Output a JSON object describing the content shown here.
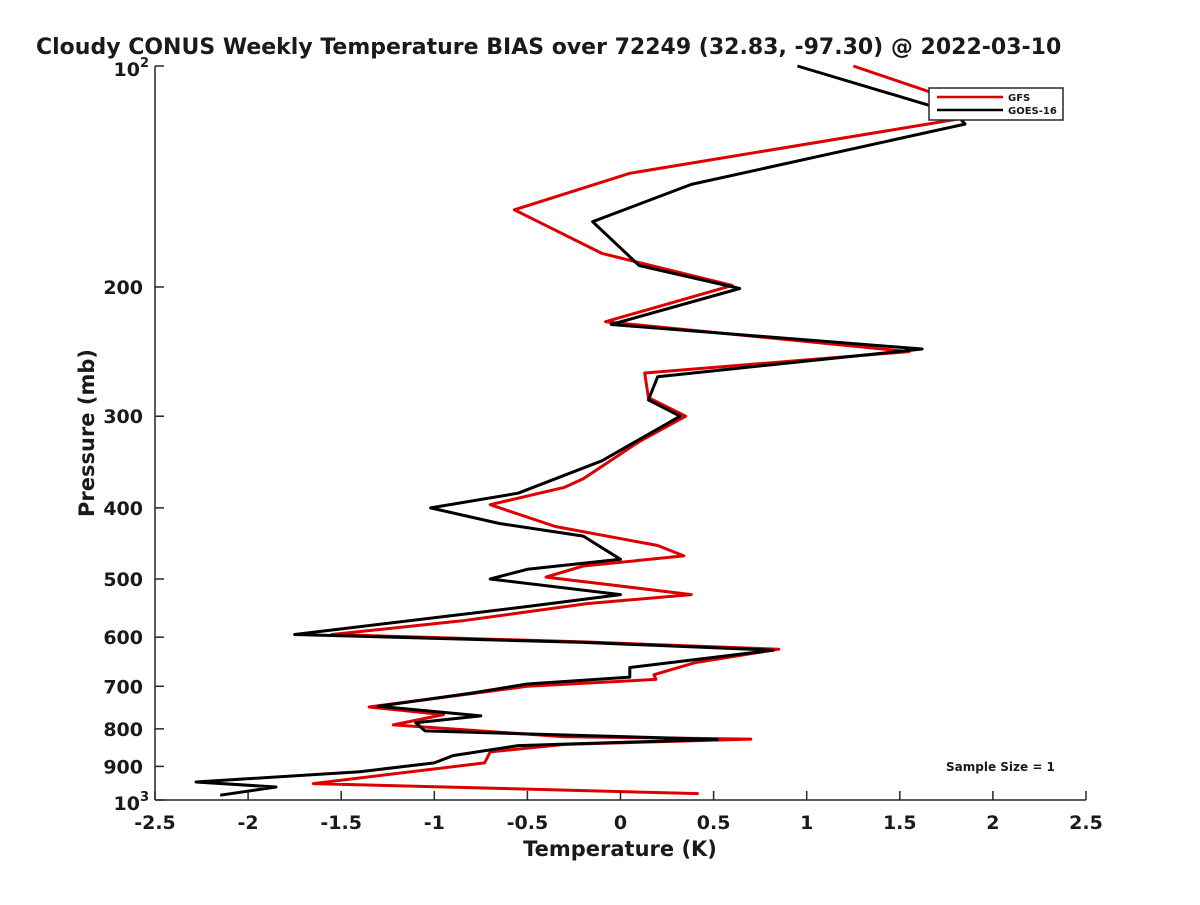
{
  "chart_data": {
    "type": "line",
    "title": "Cloudy CONUS Weekly Temperature BIAS over 72249 (32.83, -97.30) @ 2022-03-10",
    "xlabel": "Temperature (K)",
    "ylabel": "Pressure (mb)",
    "xlim": [
      -2.5,
      2.5
    ],
    "ylim": [
      100,
      1000
    ],
    "y_scale": "log",
    "y_reversed": true,
    "x_tick_labels": [
      "-2.5",
      "-2",
      "-1.5",
      "-1",
      "-0.5",
      "0",
      "0.5",
      "1",
      "1.5",
      "2",
      "2.5"
    ],
    "x_ticks": [
      -2.5,
      -2,
      -1.5,
      -1,
      -0.5,
      0,
      0.5,
      1,
      1.5,
      2,
      2.5
    ],
    "y_ticks": [
      {
        "value": 100,
        "label": "10",
        "sup": "2"
      },
      {
        "value": 200,
        "label": "200"
      },
      {
        "value": 300,
        "label": "300"
      },
      {
        "value": 400,
        "label": "400"
      },
      {
        "value": 500,
        "label": "500"
      },
      {
        "value": 600,
        "label": "600"
      },
      {
        "value": 700,
        "label": "700"
      },
      {
        "value": 800,
        "label": "800"
      },
      {
        "value": 900,
        "label": "900"
      },
      {
        "value": 1000,
        "label": "10",
        "sup": "3"
      }
    ],
    "grid": false,
    "legend_position": "top-right",
    "annotation": "Sample Size = 1",
    "series": [
      {
        "name": "GFS",
        "color": "#dd0000",
        "points": [
          [
            1.25,
            100
          ],
          [
            2.0,
            116
          ],
          [
            0.05,
            140
          ],
          [
            -0.57,
            157
          ],
          [
            -0.1,
            180
          ],
          [
            0.6,
            199
          ],
          [
            -0.08,
            223
          ],
          [
            1.55,
            245
          ],
          [
            0.13,
            262
          ],
          [
            0.15,
            283
          ],
          [
            0.35,
            300
          ],
          [
            0.1,
            325
          ],
          [
            -0.2,
            365
          ],
          [
            -0.3,
            375
          ],
          [
            -0.7,
            396
          ],
          [
            -0.35,
            424
          ],
          [
            0.2,
            450
          ],
          [
            0.34,
            465
          ],
          [
            -0.2,
            480
          ],
          [
            -0.4,
            497
          ],
          [
            0.38,
            525
          ],
          [
            -0.18,
            540
          ],
          [
            -0.85,
            570
          ],
          [
            -1.55,
            595
          ],
          [
            -0.2,
            609
          ],
          [
            0.85,
            623
          ],
          [
            0.4,
            650
          ],
          [
            0.18,
            675
          ],
          [
            0.19,
            685
          ],
          [
            -0.5,
            700
          ],
          [
            -1.35,
            747
          ],
          [
            -0.95,
            765
          ],
          [
            -1.22,
            790
          ],
          [
            -0.3,
            820
          ],
          [
            0.7,
            826
          ],
          [
            -0.3,
            840
          ],
          [
            -0.7,
            860
          ],
          [
            -0.73,
            890
          ],
          [
            -1.65,
            950
          ],
          [
            0.42,
            980
          ]
        ]
      },
      {
        "name": "GOES-16",
        "color": "#000000",
        "points": [
          [
            0.95,
            100
          ],
          [
            1.8,
            116
          ],
          [
            1.85,
            120
          ],
          [
            0.38,
            145
          ],
          [
            -0.15,
            163
          ],
          [
            0.1,
            187
          ],
          [
            0.64,
            201
          ],
          [
            -0.05,
            225
          ],
          [
            1.62,
            243
          ],
          [
            0.2,
            265
          ],
          [
            0.15,
            285
          ],
          [
            0.32,
            300
          ],
          [
            0.08,
            325
          ],
          [
            -0.1,
            345
          ],
          [
            -0.55,
            382
          ],
          [
            -1.02,
            400
          ],
          [
            -0.65,
            420
          ],
          [
            -0.2,
            437
          ],
          [
            0.0,
            470
          ],
          [
            -0.5,
            485
          ],
          [
            -0.7,
            500
          ],
          [
            0.0,
            525
          ],
          [
            -0.5,
            545
          ],
          [
            -1.75,
            595
          ],
          [
            -0.2,
            610
          ],
          [
            0.82,
            625
          ],
          [
            0.05,
            660
          ],
          [
            0.05,
            680
          ],
          [
            -0.5,
            695
          ],
          [
            -0.8,
            715
          ],
          [
            -1.3,
            745
          ],
          [
            -0.75,
            768
          ],
          [
            -1.1,
            785
          ],
          [
            -1.05,
            805
          ],
          [
            0.52,
            827
          ],
          [
            -0.55,
            843
          ],
          [
            -0.9,
            870
          ],
          [
            -1.0,
            890
          ],
          [
            -1.4,
            915
          ],
          [
            -2.28,
            945
          ],
          [
            -1.85,
            960
          ],
          [
            -2.15,
            985
          ]
        ]
      }
    ]
  }
}
